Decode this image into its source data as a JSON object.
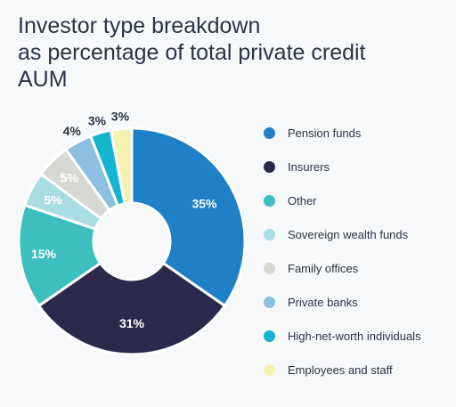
{
  "chart_data": {
    "type": "pie",
    "title_lines": [
      "Investor type breakdown",
      "as percentage of total private credit",
      "AUM"
    ],
    "categories": [
      "Pension funds",
      "Insurers",
      "Other",
      "Sovereign wealth funds",
      "Family offices",
      "Private banks",
      "High-net-worth individuals",
      "Employees and staff"
    ],
    "values": [
      35,
      31,
      15,
      5,
      5,
      4,
      3,
      3
    ],
    "data_labels": [
      "35%",
      "31%",
      "15%",
      "5%",
      "5%",
      "4%",
      "3%",
      "3%"
    ],
    "unit": "%",
    "donut": true,
    "colors": [
      "#1f80c6",
      "#2b2a4c",
      "#3dbfbf",
      "#a8dde3",
      "#d6d9d3",
      "#8dbfe0",
      "#14b5cf",
      "#f6f2b1"
    ],
    "label_colors": [
      "#ffffff",
      "#ffffff",
      "#ffffff",
      "#ffffff",
      "#ffffff",
      "#2a3447",
      "#2a3447",
      "#2a3447"
    ],
    "legend_position": "right"
  }
}
